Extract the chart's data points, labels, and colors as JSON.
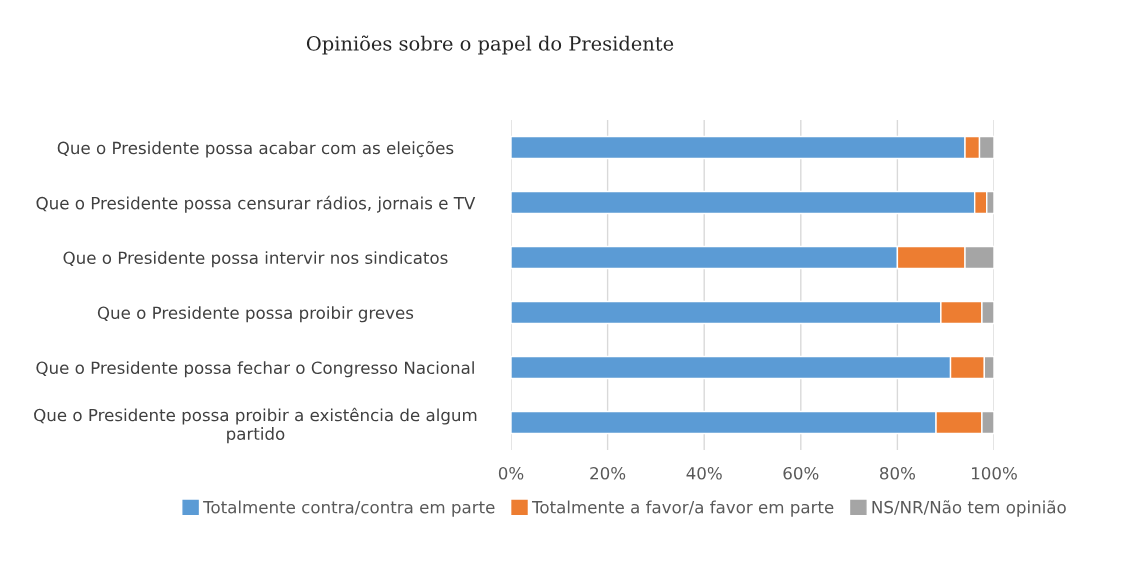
{
  "chart_data": {
    "type": "bar",
    "orientation": "horizontal",
    "stacked": true,
    "title": "Opiniões sobre o papel do Presidente",
    "categories": [
      "Que o Presidente possa acabar com as eleições",
      "Que o Presidente possa censurar rádios, jornais e TV",
      "Que o Presidente possa intervir nos sindicatos",
      "Que o Presidente possa proibir greves",
      "Que o Presidente possa fechar o Congresso Nacional",
      "Que o Presidente possa proibir a existência de algum\npartido"
    ],
    "series": [
      {
        "name": "Totalmente contra/contra em parte",
        "color": "#5b9bd5",
        "values": [
          94,
          96,
          80,
          89,
          91,
          88
        ]
      },
      {
        "name": "Totalmente a favor/a favor em parte",
        "color": "#ed7d31",
        "values": [
          3,
          2.5,
          14,
          8.5,
          7,
          9.5
        ]
      },
      {
        "name": "NS/NR/Não tem opinião",
        "color": "#a5a5a5",
        "values": [
          3,
          1.5,
          6,
          2.5,
          2,
          2.5
        ]
      }
    ],
    "xlim": [
      0,
      100
    ],
    "xticks": [
      {
        "value": 0,
        "label": "0%"
      },
      {
        "value": 20,
        "label": "20%"
      },
      {
        "value": 40,
        "label": "40%"
      },
      {
        "value": 60,
        "label": "60%"
      },
      {
        "value": 80,
        "label": "80%"
      },
      {
        "value": 100,
        "label": "100%"
      }
    ],
    "grid": "x",
    "legend": "bottom"
  }
}
